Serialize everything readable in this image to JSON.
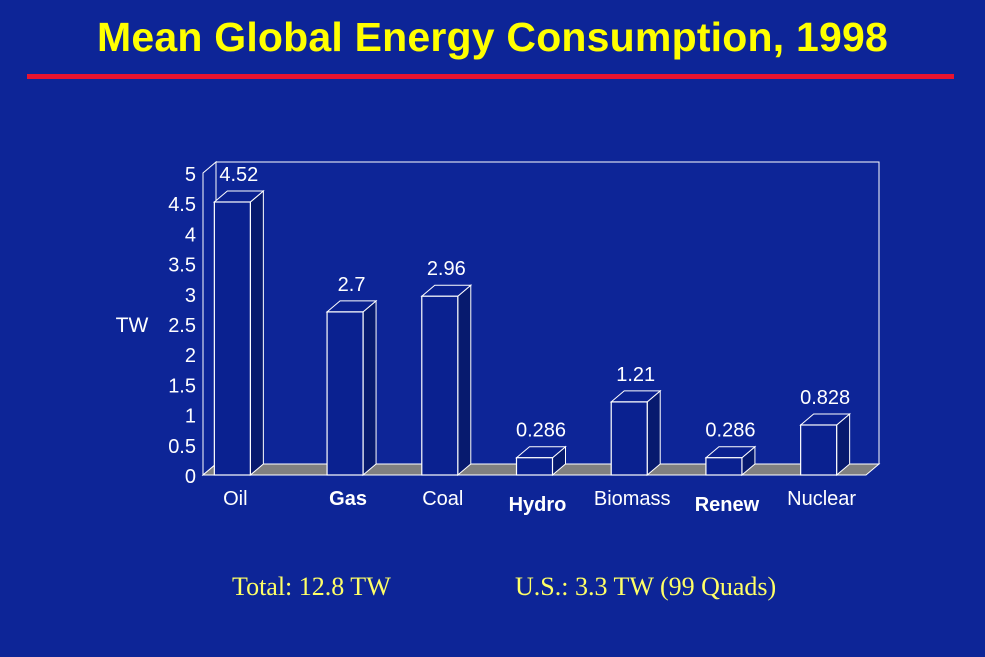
{
  "slide": {
    "title": "Mean Global Energy Consumption, 1998",
    "footer_total": "Total: 12.8 TW",
    "footer_us": "U.S.: 3.3 TW (99 Quads)"
  },
  "colors": {
    "background": "#0d2597",
    "title": "#ffff00",
    "rule": "#e8132f",
    "bar_front": "#0a2190",
    "bar_side": "#071a6e",
    "outline": "#ffffff",
    "floor": "#808080",
    "footer": "#ffff66"
  },
  "chart_data": {
    "type": "bar",
    "categories": [
      "Oil",
      "Gas",
      "Coal",
      "Hydro",
      "Biomass",
      "Renew",
      "Nuclear"
    ],
    "values": [
      4.52,
      2.7,
      2.96,
      0.286,
      1.21,
      0.286,
      0.828
    ],
    "value_labels": [
      "4.52",
      "2.7",
      "2.96",
      "0.286",
      "1.21",
      "0.286",
      "0.828"
    ],
    "ylabel": "TW",
    "ylim": [
      0,
      5
    ],
    "yticks": [
      "0",
      "0.5",
      "1",
      "1.5",
      "2",
      "2.5",
      "3",
      "3.5",
      "4",
      "4.5",
      "5"
    ],
    "style": "3d-bar",
    "grid": false
  }
}
